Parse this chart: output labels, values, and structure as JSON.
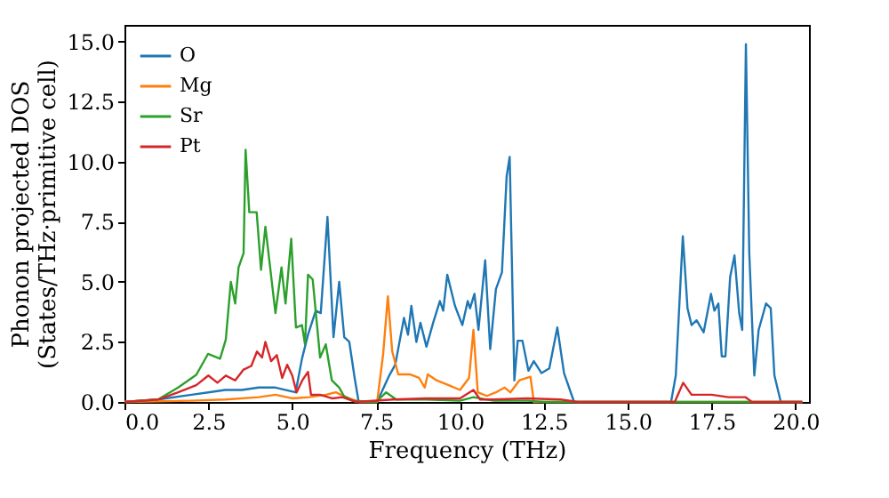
{
  "chart_data": {
    "type": "line",
    "xlabel": "Frequency (THz)",
    "ylabel": "Phonon projected DOS\n(States/THz·primitive cell)",
    "xlim": [
      0,
      20.4
    ],
    "ylim": [
      0,
      15.7
    ],
    "xticks": [
      {
        "value": 0,
        "label": "0.0"
      },
      2.5,
      {
        "value": 5,
        "label": "5.0"
      },
      7.5,
      {
        "value": 10,
        "label": "10.0"
      },
      12.5,
      {
        "value": 15,
        "label": "15.0"
      },
      17.5,
      {
        "value": 20,
        "label": "20.0"
      }
    ],
    "yticks": [
      {
        "value": 0,
        "label": "0.0"
      },
      2.5,
      {
        "value": 5,
        "label": "5.0"
      },
      7.5,
      {
        "value": 10,
        "label": "10.0"
      },
      12.5,
      {
        "value": 15,
        "label": "15.0"
      }
    ],
    "grid": false,
    "legend": "top left",
    "marker": "none",
    "line_style": "solid",
    "series": [
      {
        "name": "O",
        "color": "#1f77b4",
        "x": [
          0,
          1,
          2,
          2.5,
          3,
          3.5,
          4,
          4.5,
          5.1,
          5.29,
          5.47,
          5.7,
          5.85,
          6.05,
          6.23,
          6.4,
          6.55,
          6.7,
          6.86,
          6.98,
          7.53,
          7.89,
          8.07,
          8.33,
          8.45,
          8.55,
          8.7,
          8.82,
          9.0,
          9.2,
          9.4,
          9.5,
          9.62,
          9.85,
          10.07,
          10.23,
          10.3,
          10.43,
          10.55,
          10.75,
          10.9,
          11.07,
          11.25,
          11.39,
          11.48,
          11.62,
          11.72,
          11.86,
          12.04,
          12.2,
          12.43,
          12.66,
          12.9,
          13.1,
          13.4,
          16.29,
          16.43,
          16.64,
          16.78,
          16.9,
          17.05,
          17.26,
          17.48,
          17.58,
          17.7,
          17.8,
          17.91,
          18.05,
          18.18,
          18.32,
          18.41,
          18.52,
          18.62,
          18.77,
          18.9,
          19.12,
          19.26,
          19.37,
          19.56,
          20.2
        ],
        "values": [
          0,
          0.1,
          0.3,
          0.4,
          0.5,
          0.5,
          0.6,
          0.6,
          0.4,
          1.8,
          2.8,
          3.8,
          3.7,
          7.7,
          2.7,
          5.0,
          2.7,
          2.5,
          1.0,
          0,
          0,
          1.1,
          1.55,
          3.5,
          2.8,
          4.0,
          2.5,
          3.3,
          2.3,
          3.3,
          4.2,
          3.8,
          5.3,
          4.0,
          3.2,
          4.2,
          3.9,
          4.5,
          3.0,
          5.9,
          2.2,
          4.7,
          5.4,
          9.4,
          10.2,
          0.9,
          2.55,
          2.55,
          1.3,
          1.7,
          1.2,
          1.4,
          3.1,
          1.2,
          0,
          0,
          1.1,
          6.9,
          3.9,
          3.2,
          3.4,
          2.9,
          4.5,
          3.8,
          4.1,
          1.9,
          1.9,
          5.2,
          6.1,
          3.7,
          3.0,
          14.9,
          6.2,
          1.1,
          3.0,
          4.1,
          3.9,
          1.1,
          0,
          0
        ]
      },
      {
        "name": "Mg",
        "color": "#ff7f0e",
        "x": [
          0,
          2,
          3,
          4,
          4.5,
          5,
          5.5,
          6,
          6.3,
          6.6,
          7.0,
          7.53,
          7.71,
          7.85,
          7.98,
          8.16,
          8.5,
          8.78,
          8.95,
          9.04,
          9.3,
          9.66,
          10.0,
          10.27,
          10.4,
          10.53,
          10.8,
          11.07,
          11.33,
          11.5,
          11.77,
          12.1,
          12.2,
          20.2
        ],
        "values": [
          0,
          0.05,
          0.1,
          0.2,
          0.3,
          0.15,
          0.2,
          0.3,
          0.4,
          0.2,
          0,
          0,
          2.0,
          4.4,
          2.1,
          1.15,
          1.15,
          1.0,
          0.6,
          1.15,
          0.9,
          0.7,
          0.5,
          1.0,
          3.0,
          0.4,
          0.25,
          0.4,
          0.6,
          0.4,
          0.9,
          1.05,
          0,
          0
        ]
      },
      {
        "name": "Sr",
        "color": "#2ca02c",
        "x": [
          0,
          1,
          1.6,
          2.14,
          2.49,
          2.85,
          3.02,
          3.17,
          3.3,
          3.4,
          3.55,
          3.61,
          3.72,
          3.94,
          4.07,
          4.2,
          4.5,
          4.68,
          4.8,
          4.97,
          5.11,
          5.29,
          5.38,
          5.47,
          5.61,
          5.83,
          6.0,
          6.18,
          6.4,
          6.54,
          6.8,
          7.5,
          7.8,
          8.1,
          9,
          10,
          10.4,
          11,
          12,
          12.5,
          20.2
        ],
        "values": [
          0,
          0.1,
          0.6,
          1.13,
          2.0,
          1.8,
          2.6,
          5.0,
          4.1,
          5.6,
          6.2,
          10.5,
          7.9,
          7.9,
          5.5,
          7.3,
          3.7,
          5.6,
          4.1,
          6.8,
          3.1,
          3.2,
          2.4,
          5.3,
          5.1,
          1.85,
          2.4,
          0.9,
          0.6,
          0.25,
          0.05,
          0,
          0.4,
          0.1,
          0.1,
          0.05,
          0.2,
          0.05,
          0.05,
          0,
          0
        ]
      },
      {
        "name": "Pt",
        "color": "#d62728",
        "x": [
          0,
          1,
          1.6,
          2.14,
          2.5,
          2.77,
          3.02,
          3.3,
          3.55,
          3.78,
          3.95,
          4.1,
          4.2,
          4.37,
          4.54,
          4.7,
          4.85,
          5.0,
          5.13,
          5.3,
          5.47,
          5.56,
          5.83,
          6.18,
          6.5,
          6.9,
          8,
          9,
          10,
          10.4,
          10.6,
          11,
          12,
          13,
          13.5,
          16.4,
          16.65,
          16.9,
          17.5,
          18,
          18.5,
          18.7,
          20.2
        ],
        "values": [
          0,
          0.1,
          0.4,
          0.7,
          1.1,
          0.8,
          1.1,
          0.9,
          1.35,
          1.5,
          2.1,
          1.85,
          2.5,
          1.7,
          1.95,
          1.0,
          1.55,
          1.1,
          0.4,
          0.9,
          1.25,
          0.3,
          0.3,
          0.15,
          0.2,
          0,
          0.1,
          0.15,
          0.15,
          0.5,
          0.1,
          0.1,
          0.15,
          0.1,
          0,
          0,
          0.8,
          0.3,
          0.3,
          0.2,
          0.2,
          0,
          0
        ]
      }
    ]
  }
}
